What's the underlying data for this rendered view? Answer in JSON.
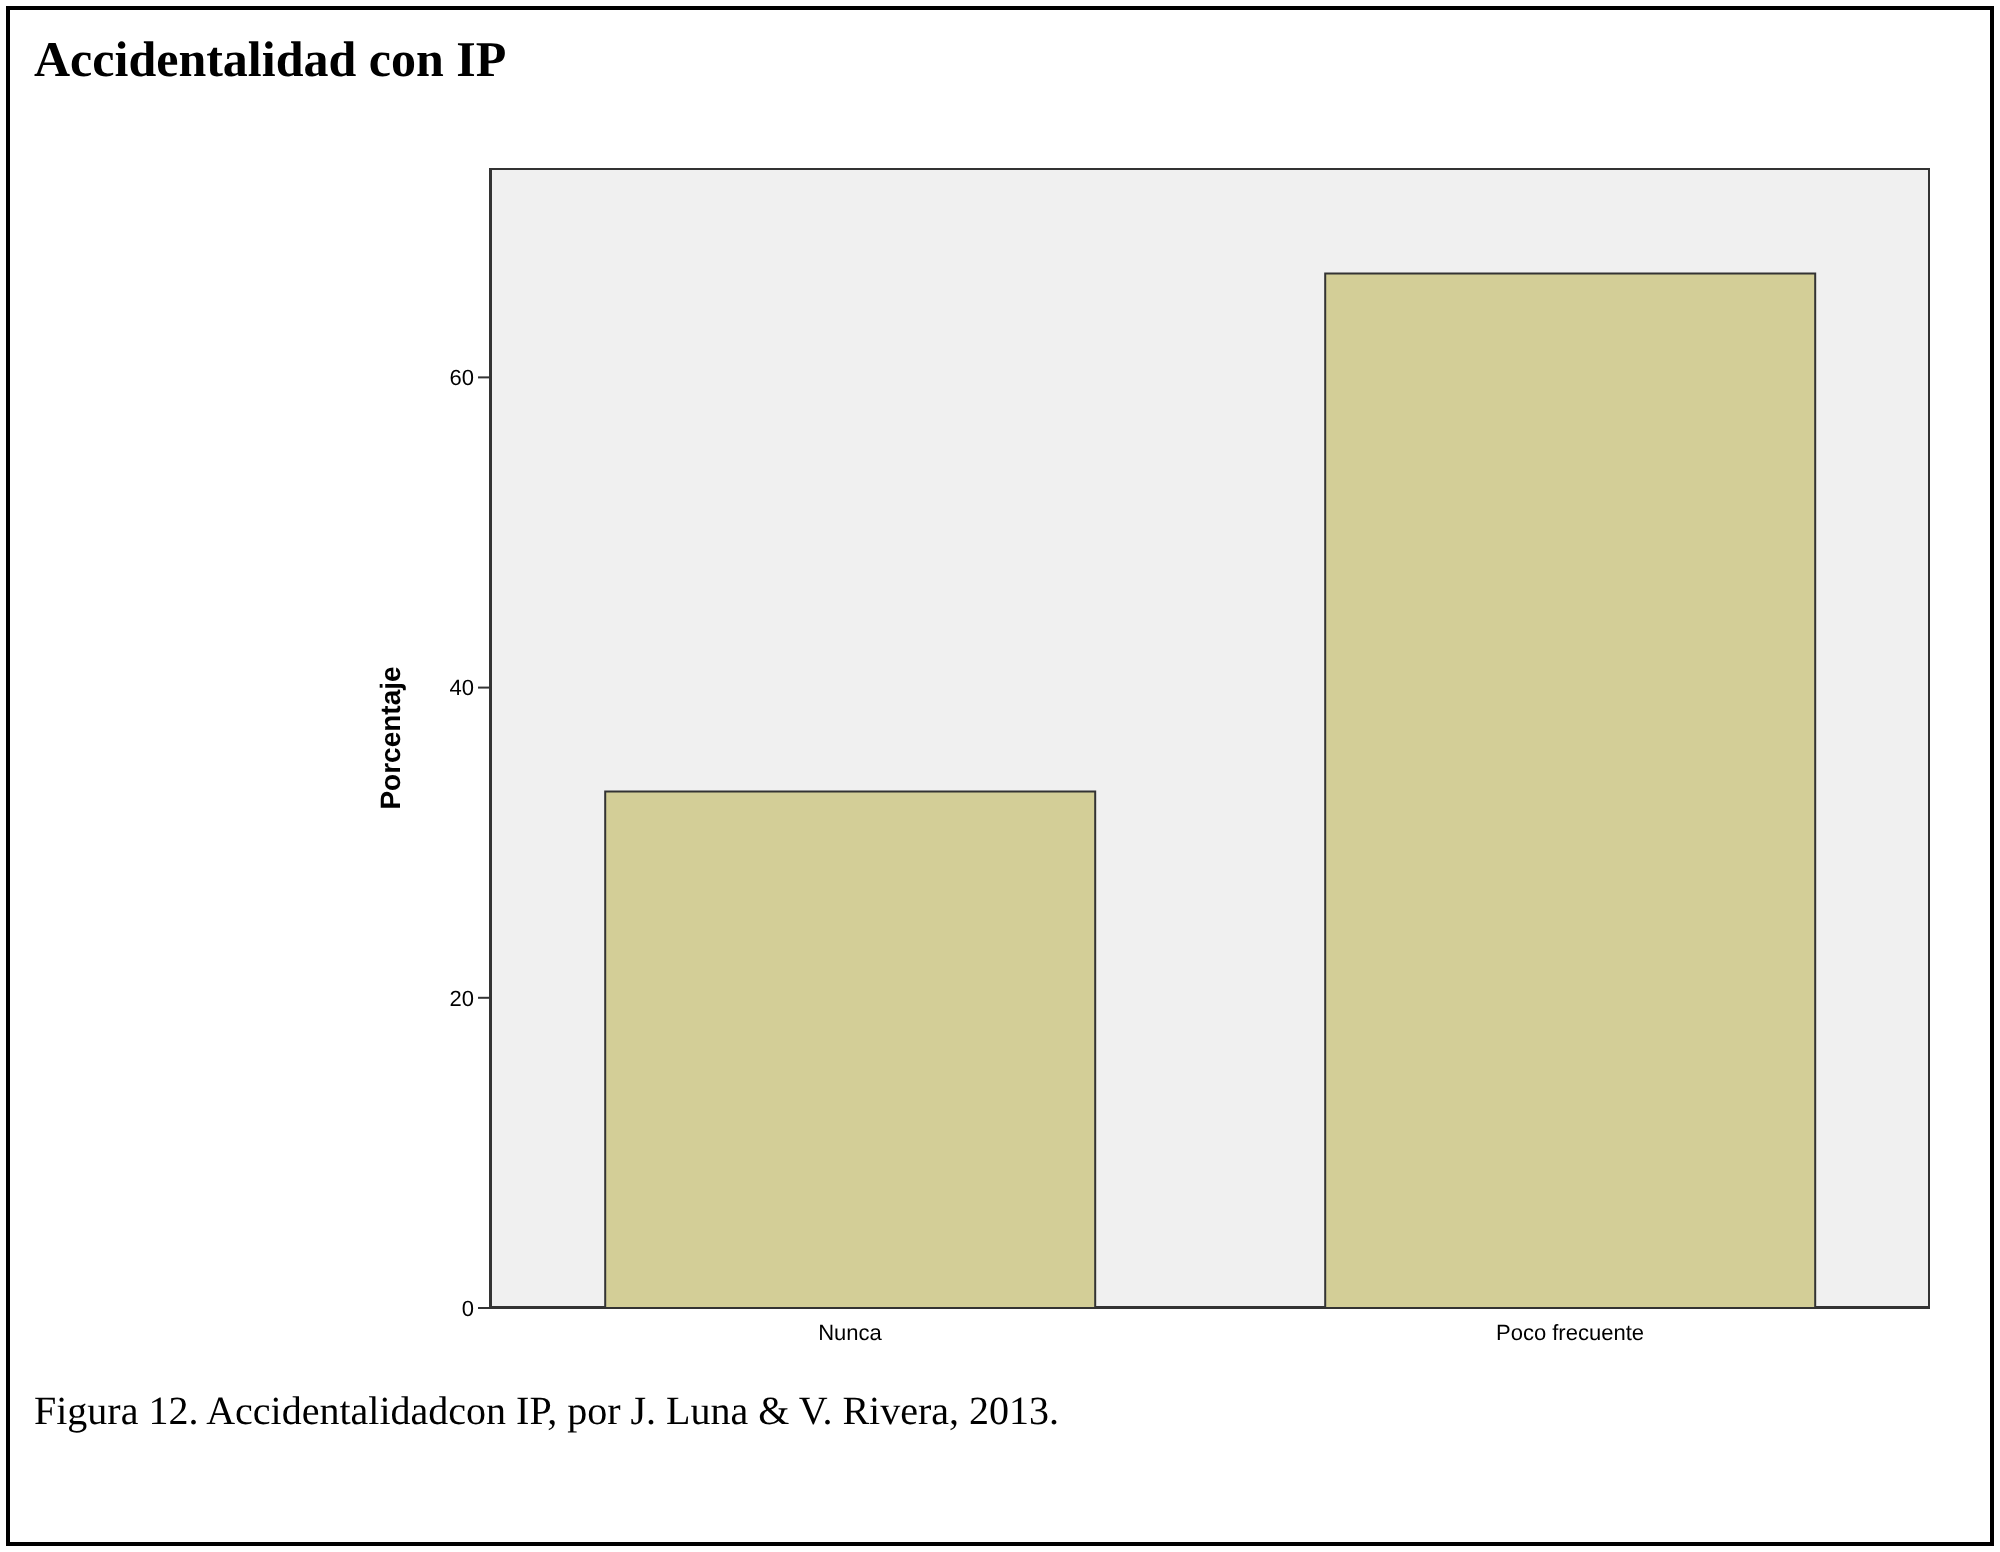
{
  "chart_data": {
    "type": "bar",
    "title": "Accidentalidad con IP",
    "ylabel": "Porcentaje",
    "categories": [
      "Nunca",
      "Poco frecuente"
    ],
    "values": [
      33.3,
      66.7
    ],
    "color": "#d3ce97",
    "ylim": [
      0,
      73.5
    ],
    "yticks": [
      0,
      20,
      40,
      60
    ],
    "annotations": [
      "Figura 12. Accidentalidadcon IP, por J. Luna & V. Rivera, 2013."
    ]
  }
}
